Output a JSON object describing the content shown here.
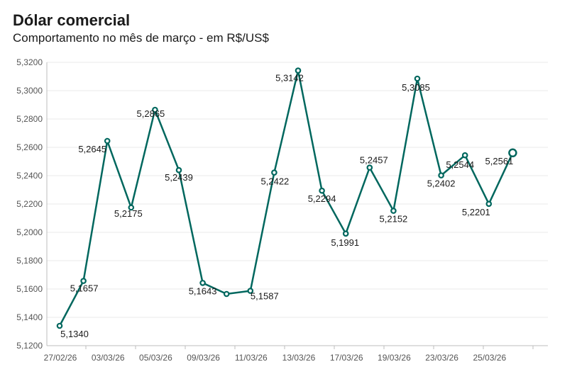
{
  "title": "Dólar comercial",
  "subtitle": "Comportamento no mês de março - em R$/US$",
  "colors": {
    "line": "#00675e",
    "marker_fill": "#ffffff"
  },
  "chart_data": {
    "type": "line",
    "x_tick_labels": [
      "27/02/26",
      "03/03/26",
      "05/03/26",
      "09/03/26",
      "11/03/26",
      "13/03/26",
      "17/03/26",
      "19/03/26",
      "23/03/26",
      "25/03/26"
    ],
    "y_tick_labels": [
      "5,1200",
      "5,1400",
      "5,1600",
      "5,1800",
      "5,2000",
      "5,2200",
      "5,2400",
      "5,2600",
      "5,2800",
      "5,3000",
      "5,3200"
    ],
    "ylim": [
      5.12,
      5.32
    ],
    "grid": true,
    "series": [
      {
        "values": [
          5.134,
          5.1657,
          5.2645,
          5.2175,
          5.2865,
          5.2439,
          5.1643,
          5.1565,
          5.1587,
          5.2422,
          5.3142,
          5.2294,
          5.1991,
          5.2457,
          5.2152,
          5.3085,
          5.2402,
          5.2544,
          5.2201,
          5.2561
        ],
        "labels": [
          "5,1340",
          "5,1657",
          "5,2645",
          "5,2175",
          "5,2865",
          "5,2439",
          "5,1643",
          "",
          "5,1587",
          "5,2422",
          "5,3142",
          "5,2294",
          "5,1991",
          "5,2457",
          "5,2152",
          "5,3085",
          "5,2402",
          "5,2544",
          "5,2201",
          "5,2561"
        ]
      }
    ]
  }
}
